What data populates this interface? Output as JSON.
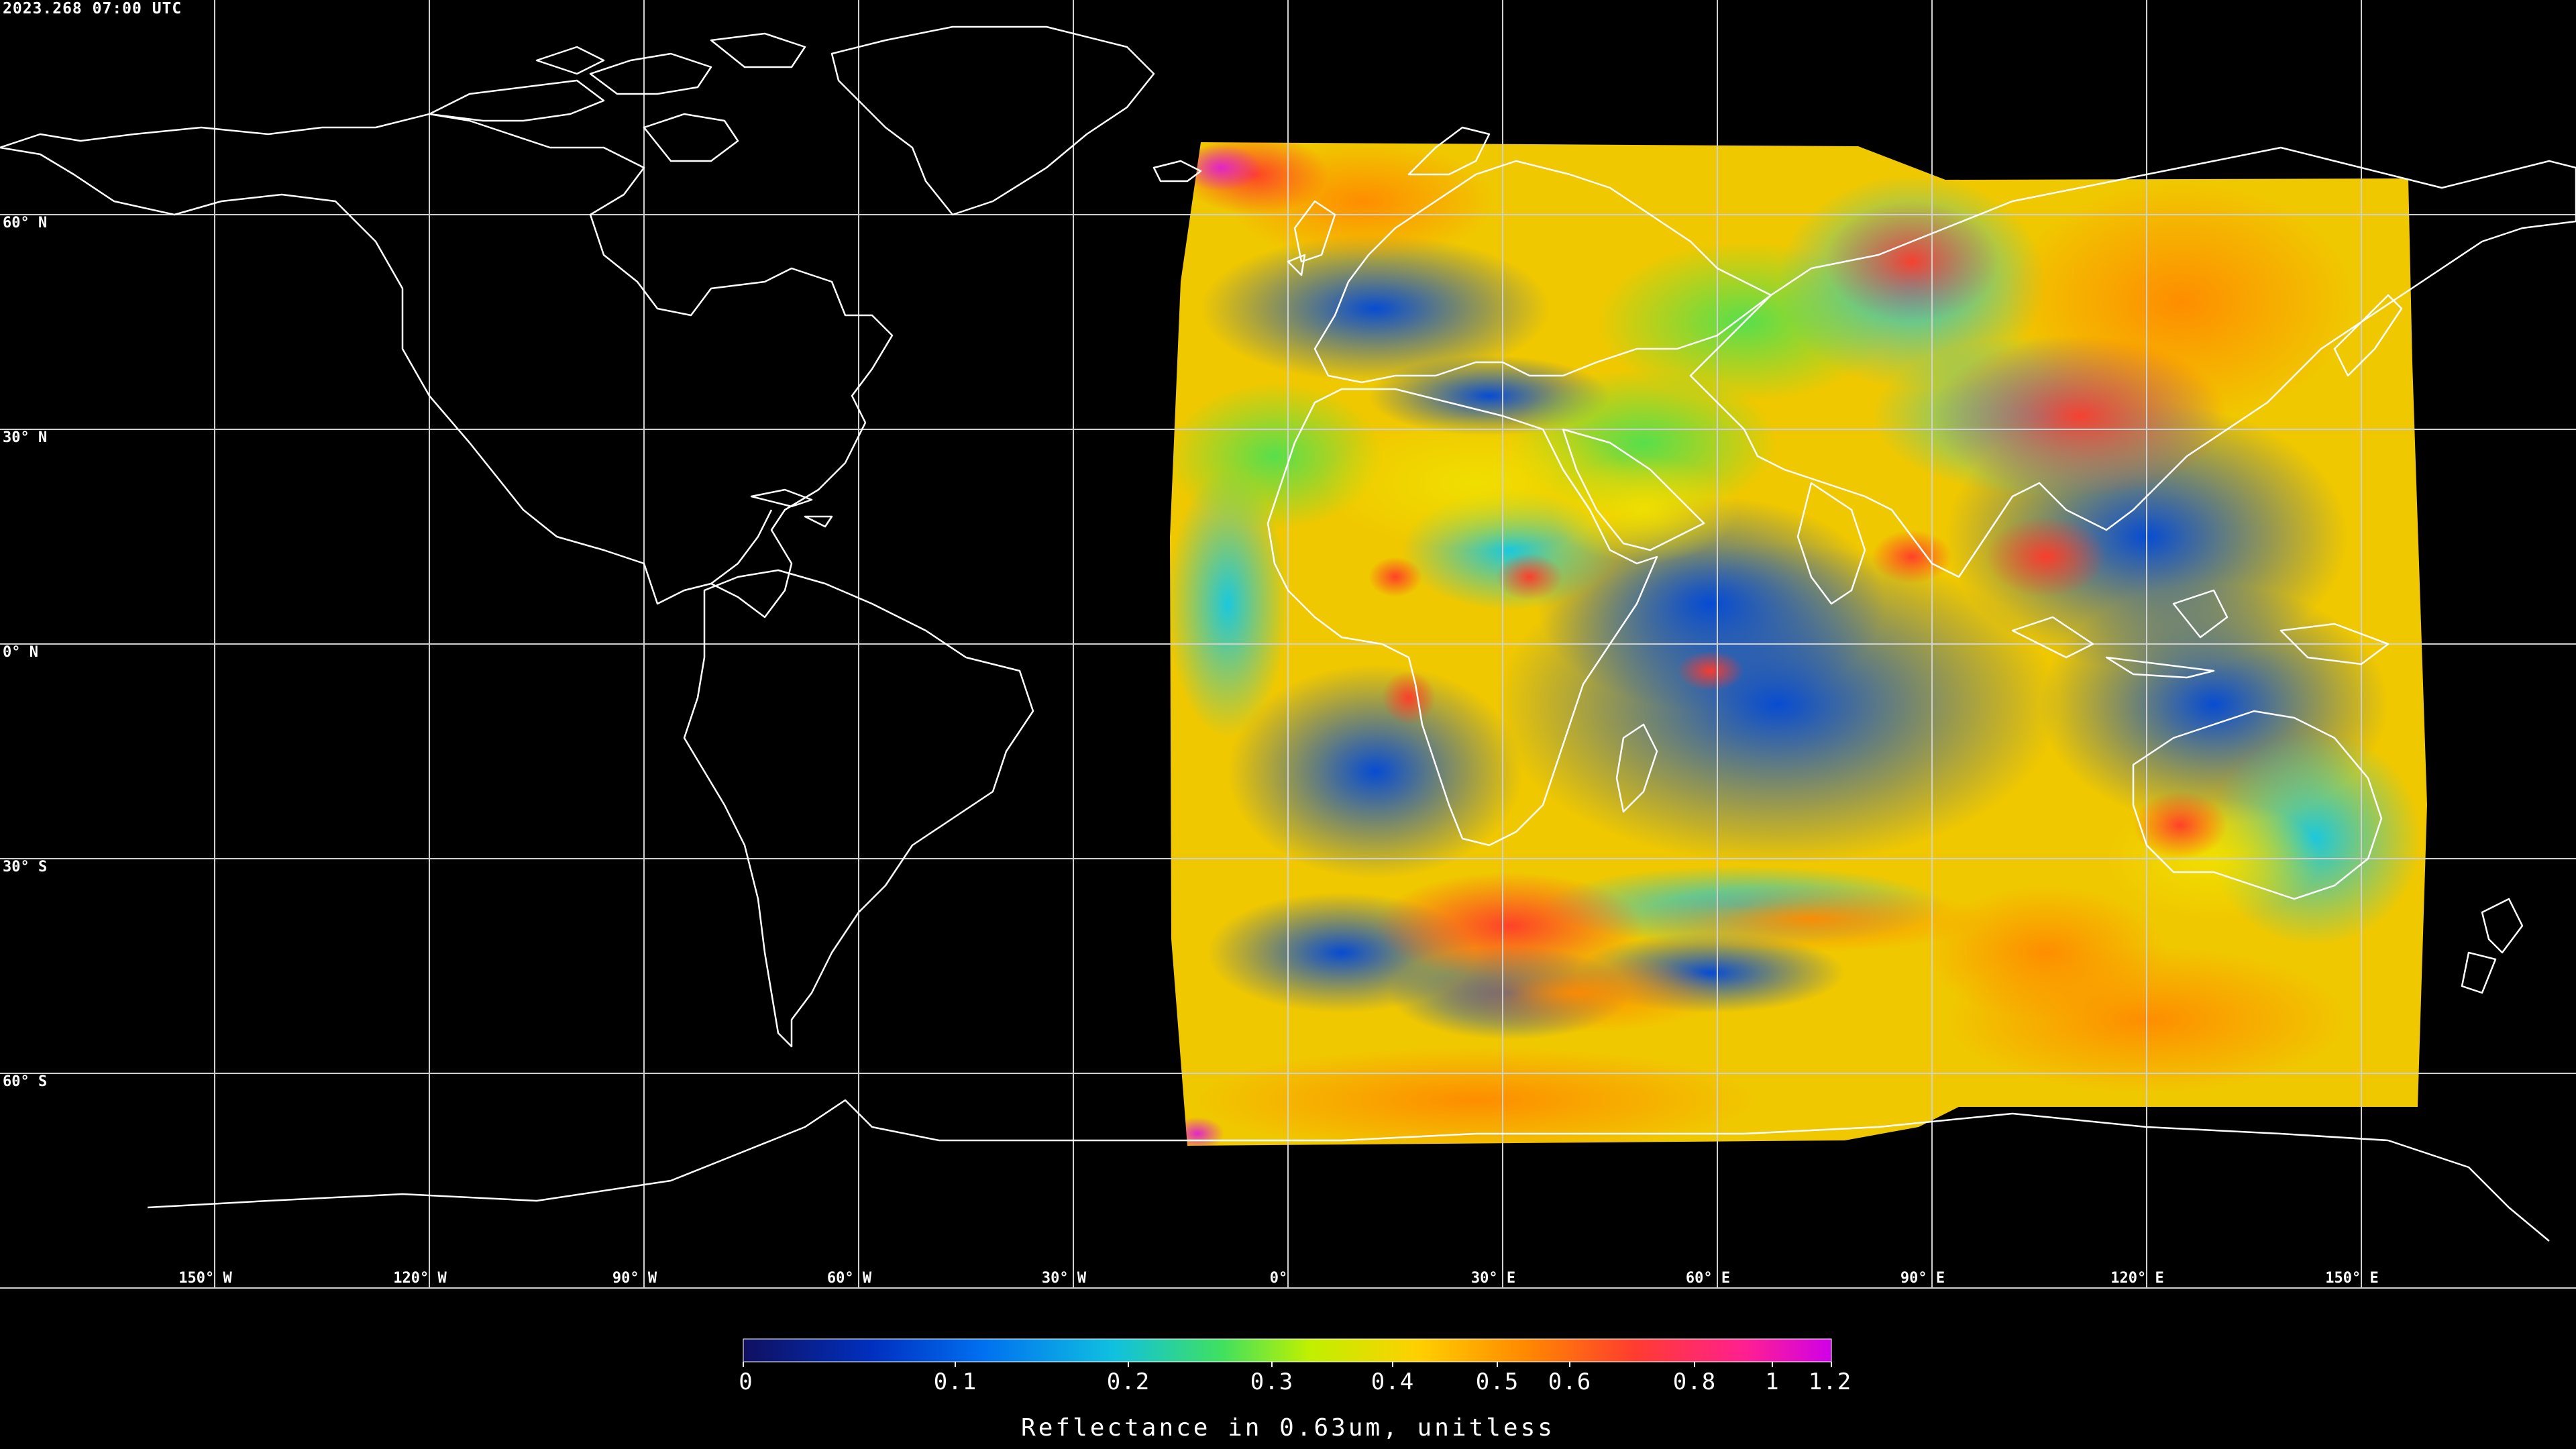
{
  "timestamp": "2023.268 07:00 UTC",
  "latitude_labels": [
    "60° N",
    "30° N",
    "0° N",
    "30° S",
    "60° S"
  ],
  "longitude_labels": [
    "150° W",
    "120° W",
    "90° W",
    "60° W",
    "30° W",
    "0°",
    "30° E",
    "60° E",
    "90° E",
    "120° E",
    "150° E"
  ],
  "colorbar": {
    "title": "Reflectance in 0.63um, unitless",
    "ticks": [
      "0",
      "0.1",
      "0.2",
      "0.3",
      "0.4",
      "0.5",
      "0.6",
      "0.8",
      "1",
      "1.2"
    ],
    "colors": {
      "background": "#000000",
      "grid": "#d0d0d0",
      "coastline": "#ffffff",
      "cmap_low": "#0a1a8c",
      "cmap_blue": "#0050e0",
      "cmap_cyan": "#10c8e0",
      "cmap_green": "#40e040",
      "cmap_yellow": "#f0e000",
      "cmap_orange": "#ff9000",
      "cmap_red": "#ff3030",
      "cmap_high": "#d010e0"
    }
  }
}
